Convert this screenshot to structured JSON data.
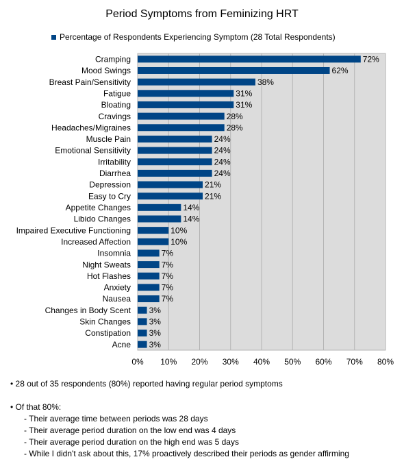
{
  "chart_data": {
    "type": "bar",
    "orientation": "horizontal",
    "title": "Period Symptoms from Feminizing HRT",
    "categories": [
      "Cramping",
      "Mood Swings",
      "Breast Pain/Sensitivity",
      "Fatigue",
      "Bloating",
      "Cravings",
      "Headaches/Migraines",
      "Muscle Pain",
      "Emotional Sensitivity",
      "Irritability",
      "Diarrhea",
      "Depression",
      "Easy to Cry",
      "Appetite Changes",
      "Libido Changes",
      "Impaired Executive Functioning",
      "Increased Affection",
      "Insomnia",
      "Night Sweats",
      "Hot Flashes",
      "Anxiety",
      "Nausea",
      "Changes in Body Scent",
      "Skin Changes",
      "Constipation",
      "Acne"
    ],
    "series": [
      {
        "name": "Percentage of Respondents Experiencing Symptom (28 Total Respondents)",
        "color": "#004586",
        "values": [
          72,
          62,
          38,
          31,
          31,
          28,
          28,
          24,
          24,
          24,
          24,
          21,
          21,
          14,
          14,
          10,
          10,
          7,
          7,
          7,
          7,
          7,
          3,
          3,
          3,
          3
        ],
        "value_labels": [
          "72%",
          "62%",
          "38%",
          "31%",
          "31%",
          "28%",
          "28%",
          "24%",
          "24%",
          "24%",
          "24%",
          "21%",
          "21%",
          "14%",
          "14%",
          "10%",
          "10%",
          "7%",
          "7%",
          "7%",
          "7%",
          "7%",
          "3%",
          "3%",
          "3%",
          "3%"
        ]
      }
    ],
    "xlim": [
      0,
      80
    ],
    "xticks": [
      {
        "value": 0,
        "label": "0%"
      },
      {
        "value": 10,
        "label": "10%"
      },
      {
        "value": 20,
        "label": "20%"
      },
      {
        "value": 30,
        "label": "30%"
      },
      {
        "value": 40,
        "label": "40%"
      },
      {
        "value": 50,
        "label": "50%"
      },
      {
        "value": 60,
        "label": "60%"
      },
      {
        "value": 70,
        "label": "70%"
      },
      {
        "value": 80,
        "label": "80%"
      }
    ],
    "grid": true,
    "legend": "top"
  },
  "notes": [
    {
      "text": "• 28 out of 35 respondents (80%) reported having regular period symptoms"
    },
    {
      "text": "• Of that 80%:",
      "items": [
        "- Their average time between periods was 28 days",
        "- Their average period duration on the low end was 4 days",
        "- Their average period duration on the high end was 5 days",
        "- While I didn't ask about this, 17% proactively described their periods as gender affirming"
      ]
    }
  ]
}
